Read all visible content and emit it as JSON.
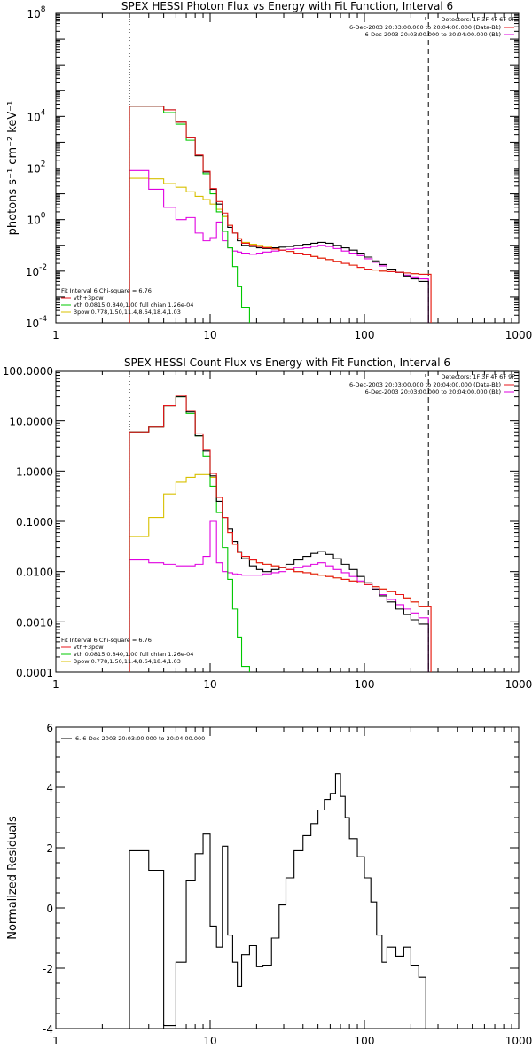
{
  "colors": {
    "data": "#000000",
    "total_fit": "#e8151b",
    "thermal": "#00c800",
    "power_law": "#d8c000",
    "background": "#e000e0",
    "limit_line_left": "#000000",
    "limit_line_right": "#000000"
  },
  "chart_data": [
    {
      "type": "line",
      "title": "SPEX HESSI Photon Flux vs Energy with Fit Function, Interval 6",
      "xlabel": "",
      "ylabel": "photons s⁻¹ cm⁻² keV⁻¹",
      "xscale": "log",
      "yscale": "log",
      "xlim": [
        1,
        1000
      ],
      "ylim": [
        0.0001,
        100000000
      ],
      "x_ticks": [
        {
          "value": 1,
          "label": "1"
        },
        {
          "value": 10,
          "label": "10"
        },
        {
          "value": 100,
          "label": "100"
        },
        {
          "value": 1000,
          "label": "1000"
        }
      ],
      "y_ticks": [
        {
          "value": 0.0001,
          "base": "10",
          "exp": "-4"
        },
        {
          "value": 0.01,
          "base": "10",
          "exp": "-2"
        },
        {
          "value": 1,
          "base": "10",
          "exp": "0"
        },
        {
          "value": 100,
          "base": "10",
          "exp": "2"
        },
        {
          "value": 10000,
          "base": "10",
          "exp": "4"
        },
        {
          "value": 100000000,
          "base": "10",
          "exp": "8"
        }
      ],
      "detectors": "Detectors: 1F 3F 4F 6F 9F",
      "legend": [
        {
          "label": "6-Dec-2003 20:03:00.000 to 20:04:00.000 (Data-Bk)",
          "color": "#e8151b"
        },
        {
          "label": "6-Dec-2003 20:03:00.000 to 20:04:00.000 (Bk)",
          "color": "#e000e0"
        }
      ],
      "fit_text": {
        "header": "Fit Interval 6    Chi-square = 6.76",
        "items": [
          {
            "label": "vth+3pow",
            "color": "#e8151b"
          },
          {
            "label": "vth 0.0815,0.840,1.00  full chian 1.26e-04",
            "color": "#00c800"
          },
          {
            "label": "3pow 0.778,1.50,11.4,8.64,18.4,1.03",
            "color": "#d8c000"
          }
        ]
      },
      "vlines": [
        {
          "x": 3,
          "style": "dotted",
          "color": "#000000"
        },
        {
          "x": 260,
          "style": "dashed",
          "color": "#000000"
        }
      ],
      "edges": [
        3,
        4,
        5,
        6,
        7,
        8,
        9,
        10,
        11,
        12,
        13,
        14,
        15,
        16,
        18,
        20,
        22,
        25,
        28,
        31,
        35,
        40,
        45,
        50,
        56,
        63,
        71,
        80,
        90,
        100,
        112,
        125,
        140,
        160,
        180,
        200,
        225,
        260
      ],
      "series": [
        {
          "name": "data",
          "color": "#000000",
          "values": [
            25000,
            25000,
            18000,
            6000,
            1500,
            300,
            70,
            15,
            4,
            1.5,
            0.5,
            0.3,
            0.15,
            0.1,
            0.09,
            0.08,
            0.075,
            0.08,
            0.085,
            0.09,
            0.1,
            0.11,
            0.12,
            0.13,
            0.12,
            0.1,
            0.08,
            0.065,
            0.05,
            0.035,
            0.025,
            0.018,
            0.012,
            0.009,
            0.0065,
            0.005,
            0.004
          ]
        },
        {
          "name": "total_fit",
          "color": "#e8151b",
          "values": [
            25000,
            25000,
            18000,
            6000,
            1500,
            320,
            75,
            16,
            5,
            1.8,
            0.6,
            0.3,
            0.18,
            0.12,
            0.1,
            0.09,
            0.08,
            0.072,
            0.065,
            0.058,
            0.05,
            0.043,
            0.037,
            0.032,
            0.028,
            0.024,
            0.02,
            0.017,
            0.014,
            0.012,
            0.011,
            0.01,
            0.0095,
            0.009,
            0.0085,
            0.008,
            0.0075
          ]
        },
        {
          "name": "thermal",
          "color": "#00c800",
          "values": [
            25000,
            25000,
            14000,
            5000,
            1200,
            300,
            60,
            10,
            2,
            0.35,
            0.08,
            0.015,
            0.0025,
            0.0004,
            6e-05
          ]
        },
        {
          "name": "power_law",
          "color": "#d8c000",
          "values": [
            40,
            38,
            25,
            18,
            12,
            8,
            6,
            4,
            2.5,
            1.3,
            0.6,
            0.3,
            0.18,
            0.13,
            0.11,
            0.1,
            0.09,
            0.075,
            0.065,
            0.058,
            0.05,
            0.043,
            0.037,
            0.032,
            0.028,
            0.024,
            0.02,
            0.017,
            0.014,
            0.012,
            0.011,
            0.01,
            0.0095,
            0.009,
            0.0085,
            0.008,
            0.0075
          ]
        },
        {
          "name": "background",
          "color": "#e000e0",
          "values": [
            80,
            15,
            3,
            1,
            1.2,
            0.3,
            0.15,
            0.2,
            0.8,
            0.15,
            0.08,
            0.06,
            0.055,
            0.05,
            0.045,
            0.05,
            0.055,
            0.06,
            0.065,
            0.07,
            0.075,
            0.08,
            0.09,
            0.1,
            0.09,
            0.075,
            0.06,
            0.05,
            0.04,
            0.03,
            0.022,
            0.016,
            0.012,
            0.009,
            0.007,
            0.006,
            0.005
          ]
        }
      ],
      "dropoff": {
        "x": 270,
        "series": [
          "total_fit",
          "power_law"
        ]
      }
    },
    {
      "type": "line",
      "title": "SPEX HESSI Count Flux vs Energy with Fit Function, Interval 6",
      "xlabel": "",
      "ylabel": "",
      "xscale": "log",
      "yscale": "log",
      "xlim": [
        1,
        1000
      ],
      "ylim": [
        0.0001,
        100
      ],
      "x_ticks": [
        {
          "value": 1,
          "label": "1"
        },
        {
          "value": 10,
          "label": "10"
        },
        {
          "value": 100,
          "label": "100"
        },
        {
          "value": 1000,
          "label": "1000"
        }
      ],
      "y_ticks": [
        {
          "value": 0.0001,
          "label": "0.0001"
        },
        {
          "value": 0.001,
          "label": "0.0010"
        },
        {
          "value": 0.01,
          "label": "0.0100"
        },
        {
          "value": 0.1,
          "label": "0.1000"
        },
        {
          "value": 1,
          "label": "1.0000"
        },
        {
          "value": 10,
          "label": "10.0000"
        },
        {
          "value": 100,
          "label": "100.0000"
        }
      ],
      "detectors": "Detectors: 1F 3F 4F 6F 9F",
      "legend": [
        {
          "label": "6-Dec-2003 20:03:00.000 to 20:04:00.000 (Data-Bk)",
          "color": "#e8151b"
        },
        {
          "label": "6-Dec-2003 20:03:00.000 to 20:04:00.000 (Bk)",
          "color": "#e000e0"
        }
      ],
      "fit_text": {
        "header": "Fit Interval 6    Chi-square = 6.76",
        "items": [
          {
            "label": "vth+3pow",
            "color": "#e8151b"
          },
          {
            "label": "vth 0.0815,0.840,1.00  full chian 1.26e-04",
            "color": "#00c800"
          },
          {
            "label": "3pow 0.778,1.50,11.4,8.64,18.4,1.03",
            "color": "#d8c000"
          }
        ]
      },
      "vlines": [
        {
          "x": 3,
          "style": "dotted",
          "color": "#000000"
        },
        {
          "x": 260,
          "style": "dashed",
          "color": "#000000"
        }
      ],
      "edges": [
        3,
        4,
        5,
        6,
        7,
        8,
        9,
        10,
        11,
        12,
        13,
        14,
        15,
        16,
        18,
        20,
        22,
        25,
        28,
        31,
        35,
        40,
        45,
        50,
        56,
        63,
        71,
        80,
        90,
        100,
        112,
        125,
        140,
        160,
        180,
        200,
        225,
        260
      ],
      "series": [
        {
          "name": "data",
          "color": "#000000",
          "values": [
            6,
            7.5,
            20,
            30,
            15,
            5,
            2.5,
            0.8,
            0.25,
            0.12,
            0.07,
            0.04,
            0.025,
            0.018,
            0.013,
            0.011,
            0.01,
            0.011,
            0.012,
            0.014,
            0.017,
            0.02,
            0.023,
            0.025,
            0.022,
            0.018,
            0.014,
            0.011,
            0.008,
            0.006,
            0.0045,
            0.0033,
            0.0025,
            0.0018,
            0.0014,
            0.0011,
            0.0009
          ]
        },
        {
          "name": "total_fit",
          "color": "#e8151b",
          "values": [
            6,
            7.5,
            20,
            32,
            16,
            5.5,
            2.7,
            0.9,
            0.3,
            0.12,
            0.06,
            0.035,
            0.024,
            0.02,
            0.017,
            0.015,
            0.014,
            0.013,
            0.012,
            0.011,
            0.01,
            0.0095,
            0.009,
            0.0085,
            0.008,
            0.0075,
            0.007,
            0.0065,
            0.006,
            0.0055,
            0.005,
            0.0045,
            0.004,
            0.0035,
            0.003,
            0.0025,
            0.002
          ]
        },
        {
          "name": "thermal",
          "color": "#00c800",
          "values": [
            6,
            7.5,
            20,
            30,
            14,
            5,
            2,
            0.5,
            0.15,
            0.03,
            0.007,
            0.0018,
            0.0005,
            0.00013
          ]
        },
        {
          "name": "power_law",
          "color": "#d8c000",
          "values": [
            0.05,
            0.12,
            0.35,
            0.6,
            0.75,
            0.85,
            0.85,
            0.75,
            0.3,
            0.12,
            0.06,
            0.035,
            0.024,
            0.02,
            0.017,
            0.015,
            0.014,
            0.013,
            0.012,
            0.011,
            0.01,
            0.0095,
            0.009,
            0.0085,
            0.008,
            0.0075,
            0.007,
            0.0065,
            0.006,
            0.0055,
            0.005,
            0.0045,
            0.004,
            0.0035,
            0.003,
            0.0025,
            0.002
          ]
        },
        {
          "name": "background",
          "color": "#e000e0",
          "values": [
            0.017,
            0.015,
            0.014,
            0.013,
            0.013,
            0.014,
            0.02,
            0.1,
            0.015,
            0.01,
            0.0095,
            0.009,
            0.0088,
            0.0085,
            0.0085,
            0.0085,
            0.009,
            0.0095,
            0.01,
            0.011,
            0.012,
            0.013,
            0.014,
            0.015,
            0.013,
            0.011,
            0.0095,
            0.008,
            0.0065,
            0.0055,
            0.0045,
            0.0035,
            0.0028,
            0.0022,
            0.0018,
            0.0015,
            0.0012
          ]
        }
      ],
      "dropoff": {
        "x": 270,
        "series": [
          "total_fit",
          "power_law"
        ]
      }
    },
    {
      "type": "line",
      "title": "",
      "xlabel": "",
      "ylabel": "Normalized Residuals",
      "xscale": "log",
      "yscale": "linear",
      "xlim": [
        1,
        1000
      ],
      "ylim": [
        -4,
        6
      ],
      "x_ticks": [
        {
          "value": 1,
          "label": "1"
        },
        {
          "value": 10,
          "label": "10"
        },
        {
          "value": 100,
          "label": "100"
        },
        {
          "value": 1000,
          "label": "1000"
        }
      ],
      "y_ticks": [
        {
          "value": -4,
          "label": "-4"
        },
        {
          "value": -2,
          "label": "-2"
        },
        {
          "value": 0,
          "label": "0"
        },
        {
          "value": 2,
          "label": "2"
        },
        {
          "value": 4,
          "label": "4"
        },
        {
          "value": 6,
          "label": "6"
        }
      ],
      "legend": [
        {
          "label": "6. 6-Dec-2003 20:03:00.000 to 20:04:00.000",
          "color": "#000000"
        }
      ],
      "edges": [
        3,
        4,
        5,
        6,
        7,
        8,
        9,
        10,
        11,
        12,
        13,
        14,
        15,
        16,
        18,
        20,
        22,
        25,
        28,
        31,
        35,
        40,
        45,
        50,
        55,
        60,
        65,
        70,
        75,
        80,
        90,
        100,
        110,
        120,
        130,
        140,
        160,
        180,
        200,
        225,
        250
      ],
      "series": [
        {
          "name": "residuals",
          "color": "#000000",
          "values": [
            1.9,
            1.25,
            -3.9,
            -1.8,
            0.9,
            1.8,
            2.45,
            -0.6,
            -1.3,
            2.05,
            -0.9,
            -1.8,
            -2.6,
            -1.55,
            -1.25,
            -1.95,
            -1.9,
            -1.0,
            0.1,
            1.0,
            1.9,
            2.4,
            2.8,
            3.25,
            3.6,
            3.8,
            4.45,
            3.7,
            3.0,
            2.3,
            1.7,
            1.0,
            0.2,
            -0.9,
            -1.8,
            -1.3,
            -1.6,
            -1.3,
            -1.9,
            -2.3
          ]
        }
      ],
      "drop_to_bottom": true
    }
  ]
}
